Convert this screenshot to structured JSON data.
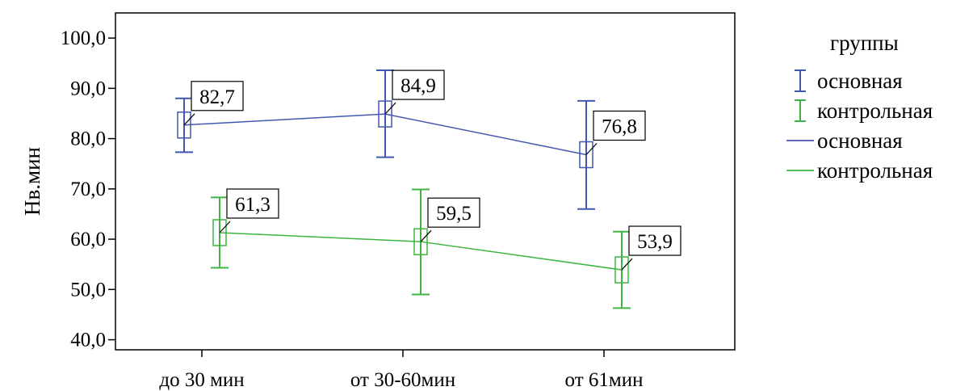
{
  "chart_data": {
    "type": "line",
    "title": "",
    "xlabel": "",
    "ylabel": "Hв.мин",
    "categories": [
      "до 30 мин",
      "от 30-60мин",
      "от 61мин"
    ],
    "ylim": [
      38,
      105
    ],
    "yticks": [
      40,
      50,
      60,
      70,
      80,
      90,
      100
    ],
    "ytick_labels": [
      "40,0",
      "50,0",
      "60,0",
      "70,0",
      "80,0",
      "90,0",
      "100,0"
    ],
    "grid": false,
    "legend_position": "right",
    "legend_title": "группы",
    "series": [
      {
        "name": "основная",
        "color": "#4257b0",
        "values": [
          82.7,
          84.9,
          76.8
        ],
        "labels": [
          "82,7",
          "84,9",
          "76,8"
        ],
        "ci_lower": [
          77.3,
          76.3,
          66.0
        ],
        "ci_upper": [
          88.0,
          93.6,
          87.5
        ]
      },
      {
        "name": "контрольная",
        "color": "#3db540",
        "values": [
          61.3,
          59.5,
          53.9
        ],
        "labels": [
          "61,3",
          "59,5",
          "53,9"
        ],
        "ci_lower": [
          54.3,
          49.0,
          46.3
        ],
        "ci_upper": [
          68.3,
          69.9,
          61.5
        ]
      }
    ],
    "legend": {
      "errorbar_entries": [
        "основная",
        "контрольная"
      ],
      "line_entries": [
        "основная",
        "контрольная"
      ]
    }
  }
}
